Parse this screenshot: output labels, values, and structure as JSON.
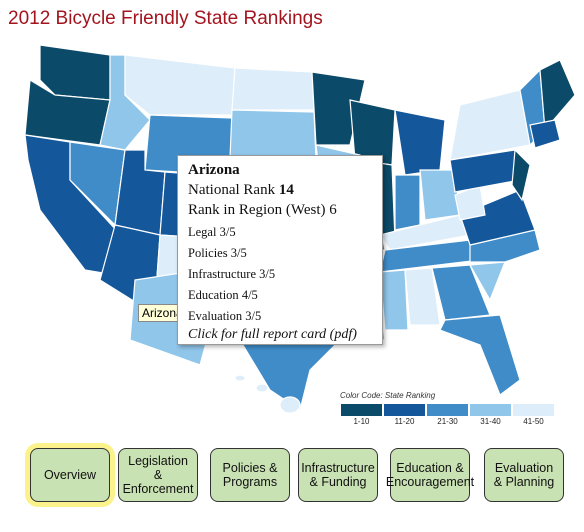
{
  "title": "2012 Bicycle Friendly State Rankings",
  "hover_label": "Arizona",
  "popup": {
    "state": "Arizona",
    "national_rank": {
      "label": "National Rank",
      "value": 14
    },
    "region_rank": {
      "label": "Rank in Region (West)",
      "value": 6
    },
    "scores": [
      {
        "label": "Legal",
        "value": "3/5"
      },
      {
        "label": "Policies",
        "value": "3/5"
      },
      {
        "label": "Infrastructure",
        "value": "3/5"
      },
      {
        "label": "Education",
        "value": "4/5"
      },
      {
        "label": "Evaluation",
        "value": "3/5"
      }
    ],
    "link": "Click for full report card (pdf)"
  },
  "legend": {
    "title": "Color Code: State Ranking",
    "items": [
      {
        "label": "1-10",
        "color": "#0b4a68"
      },
      {
        "label": "11-20",
        "color": "#14579a"
      },
      {
        "label": "21-30",
        "color": "#3f8cc9"
      },
      {
        "label": "31-40",
        "color": "#90c6ea"
      },
      {
        "label": "41-50",
        "color": "#ddedf9"
      }
    ]
  },
  "nav": [
    {
      "label": "Overview",
      "active": true
    },
    {
      "label": "Legislation & Enforcement",
      "active": false
    },
    {
      "label": "Policies & Programs",
      "active": false
    },
    {
      "label": "Infrastructure & Funding",
      "active": false
    },
    {
      "label": "Education & Encouragement",
      "active": false
    },
    {
      "label": "Evaluation & Planning",
      "active": false
    }
  ]
}
